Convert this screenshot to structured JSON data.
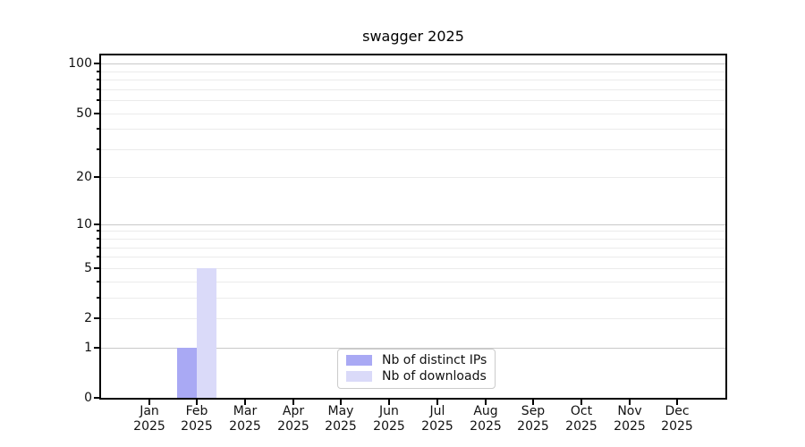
{
  "chart_data": {
    "type": "bar",
    "title": "swagger 2025",
    "x_categories": [
      "Jan",
      "Feb",
      "Mar",
      "Apr",
      "May",
      "Jun",
      "Jul",
      "Aug",
      "Sep",
      "Oct",
      "Nov",
      "Dec"
    ],
    "x_year_label": "2025",
    "series": [
      {
        "name": "Nb of distinct IPs",
        "color": "#a9a9f4",
        "values": [
          0,
          1,
          0,
          0,
          0,
          0,
          0,
          0,
          0,
          0,
          0,
          0
        ]
      },
      {
        "name": "Nb of downloads",
        "color": "#dadaf9",
        "values": [
          0,
          5,
          0,
          0,
          0,
          0,
          0,
          0,
          0,
          0,
          0,
          0
        ]
      }
    ],
    "y_axis": {
      "scale": "log1p",
      "major_ticks": [
        0,
        1,
        2,
        5,
        10,
        20,
        50,
        100
      ],
      "minor_ticks": [
        3,
        4,
        6,
        7,
        8,
        9,
        30,
        40,
        60,
        70,
        80,
        90
      ],
      "emphasized_gridlines": [
        1,
        10,
        100
      ],
      "range": [
        0,
        112
      ]
    },
    "legend_position": "lower center",
    "colors": {
      "grid_major": "#c9c9c9",
      "grid_minor": "#ebebeb",
      "axis": "#000000",
      "text": "#111111"
    }
  }
}
